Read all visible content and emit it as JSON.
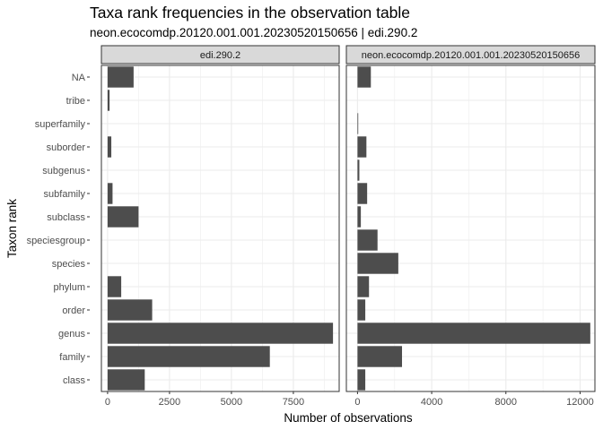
{
  "title": "Taxa rank frequencies in the observation table",
  "subtitle": "neon.ecocomdp.20120.001.001.20230520150656 | edi.290.2",
  "chart_data": {
    "type": "bar",
    "orientation": "horizontal",
    "title": "Taxa rank frequencies in the observation table",
    "subtitle": "neon.ecocomdp.20120.001.001.20230520150656 | edi.290.2",
    "xlabel": "Number of observations",
    "ylabel": "Taxon rank",
    "categories": [
      "NA",
      "tribe",
      "superfamily",
      "suborder",
      "subgenus",
      "subfamily",
      "subclass",
      "speciesgroup",
      "species",
      "phylum",
      "order",
      "genus",
      "family",
      "class"
    ],
    "grid": true,
    "legend": "none",
    "bar_color": "#4d4d4d",
    "panels": [
      {
        "name": "edi.290.2",
        "values": [
          1050,
          80,
          0,
          150,
          0,
          200,
          1250,
          0,
          0,
          550,
          1800,
          9100,
          6550,
          1500
        ],
        "xlim": [
          -250,
          9350
        ],
        "xticks": [
          0,
          2500,
          5000,
          7500
        ]
      },
      {
        "name": "neon.ecocomdp.20120.001.001.20230520150656",
        "values": [
          720,
          0,
          20,
          480,
          100,
          520,
          180,
          1080,
          2200,
          620,
          420,
          12550,
          2400,
          420
        ],
        "xlim": [
          -600,
          12800
        ],
        "xticks": [
          0,
          4000,
          8000,
          12000
        ]
      }
    ]
  }
}
